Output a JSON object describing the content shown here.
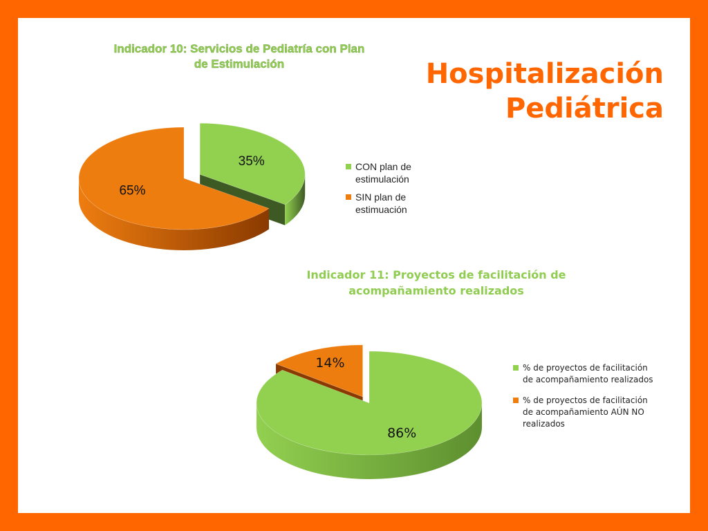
{
  "slide": {
    "title_line1": "Hospitalización",
    "title_line2": "Pediátrica",
    "background": "#ff6600",
    "title_color": "#ff6600"
  },
  "chart_data": [
    {
      "type": "pie",
      "style": "3d-exploded",
      "title": "Indicador 10: Servicios de Pediatría con Plan de Estimulación",
      "title_lines": [
        "Indicador 10: Servicios de Pediatría con Plan",
        "de Estimulación"
      ],
      "categories": [
        "CON plan de estimulación",
        "SIN plan de estimuación"
      ],
      "legend_lines": [
        [
          "CON plan de",
          "estimulación"
        ],
        [
          "SIN plan de",
          "estimuación"
        ]
      ],
      "values": [
        35,
        65
      ],
      "labels": [
        "35%",
        "65%"
      ],
      "colors": [
        "#92d050",
        "#ee7d10"
      ],
      "side_colors": [
        "#3e5a24",
        "#8a3a00"
      ],
      "exploded": 0,
      "legend_position": "right"
    },
    {
      "type": "pie",
      "style": "3d-exploded",
      "title": "Indicador 11: Proyectos de facilitación de acompañamiento realizados",
      "title_lines": [
        "Indicador 11: Proyectos de facilitación de",
        "acompañamiento realizados"
      ],
      "categories": [
        "% de proyectos de facilitación de acompañamiento realizados",
        "% de proyectos de facilitación de acompañamiento AÚN NO realizados"
      ],
      "legend_lines": [
        [
          "% de proyectos de facilitación",
          "de acompañamiento realizados"
        ],
        [
          "% de proyectos de facilitación",
          "de acompañamiento AÚN NO",
          "realizados"
        ]
      ],
      "values": [
        86,
        14
      ],
      "labels": [
        "86%",
        "14%"
      ],
      "colors": [
        "#92d050",
        "#ee7d10"
      ],
      "side_colors": [
        "#5d8f2f",
        "#8a3a00"
      ],
      "exploded": 1,
      "legend_position": "right"
    }
  ]
}
